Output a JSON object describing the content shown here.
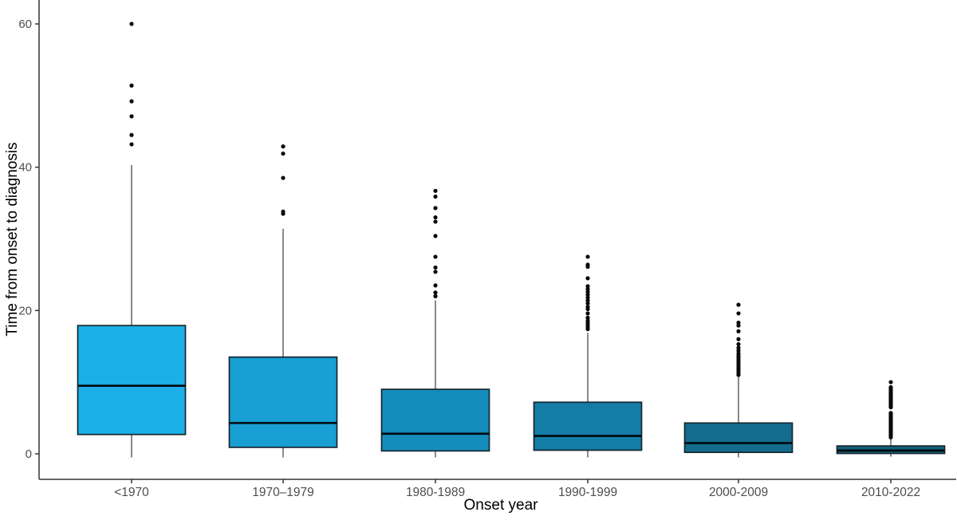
{
  "chart_data": {
    "type": "boxplot",
    "title": "",
    "xlabel": "Onset year",
    "ylabel": "Time from onset to diagnosis",
    "categories": [
      "<1970",
      "1970–1979",
      "1980-1989",
      "1990-1999",
      "2000-2009",
      "2010-2022"
    ],
    "y_ticks": [
      0,
      20,
      40,
      60
    ],
    "ylim": [
      -3.5,
      63.5
    ],
    "grid": false,
    "legend": false,
    "boxes": [
      {
        "category": "<1970",
        "whisker_low": -0.5,
        "q1": 2.7,
        "median": 9.5,
        "q3": 17.9,
        "whisker_high": 40.3,
        "outliers": [
          43.2,
          44.5,
          47.1,
          49.2,
          51.4,
          60
        ],
        "fill": "#1CAFE8"
      },
      {
        "category": "1970–1979",
        "whisker_low": -0.5,
        "q1": 0.9,
        "median": 4.3,
        "q3": 13.5,
        "whisker_high": 31.4,
        "outliers": [
          33.5,
          33.8,
          38.5,
          41.9,
          42.9
        ],
        "fill": "#189FD3"
      },
      {
        "category": "1980-1989",
        "whisker_low": -0.5,
        "q1": 0.4,
        "median": 2.8,
        "q3": 9.0,
        "whisker_high": 21.4,
        "outliers": [
          22.0,
          22.5,
          23.5,
          25.4,
          26.0,
          27.5,
          30.4,
          32.4,
          33.0,
          34.3,
          35.9,
          36.7
        ],
        "fill": "#158DBB"
      },
      {
        "category": "1990-1999",
        "whisker_low": -0.5,
        "q1": 0.5,
        "median": 2.5,
        "q3": 7.2,
        "whisker_high": 16.9,
        "outliers": [
          17.4,
          17.7,
          18.0,
          18.3,
          18.6,
          19.0,
          19.6,
          20.2,
          20.5,
          21.0,
          21.4,
          21.8,
          22.2,
          22.6,
          23.0,
          23.4,
          24.5,
          26.1,
          26.4,
          27.5
        ],
        "fill": "#137DA7"
      },
      {
        "category": "2000-2009",
        "whisker_low": -0.5,
        "q1": 0.2,
        "median": 1.5,
        "q3": 4.3,
        "whisker_high": 10.7,
        "outliers": [
          11.0,
          11.3,
          11.6,
          11.9,
          12.2,
          12.5,
          12.8,
          13.1,
          13.4,
          13.7,
          14.0,
          14.4,
          14.8,
          15.3,
          16.0,
          17.1,
          17.9,
          18.3,
          19.6,
          20.8
        ],
        "fill": "#136C8E"
      },
      {
        "category": "2010-2022",
        "whisker_low": -0.4,
        "q1": 0.05,
        "median": 0.45,
        "q3": 1.1,
        "whisker_high": 2.1,
        "outliers": [
          2.3,
          2.5,
          2.7,
          2.9,
          3.1,
          3.3,
          3.5,
          3.7,
          3.9,
          4.1,
          4.3,
          4.5,
          4.7,
          4.9,
          5.1,
          5.3,
          5.5,
          5.7,
          6.5,
          6.7,
          6.9,
          7.1,
          7.3,
          7.5,
          7.7,
          7.9,
          8.1,
          8.3,
          8.5,
          8.7,
          8.9,
          9.1,
          9.3,
          10.0
        ],
        "fill": "#125E78"
      }
    ],
    "colors": {
      "box_border": "#16262E",
      "median_line": "#02080C",
      "whisker": "#4A4A4A",
      "outlier": "#0A0A0A",
      "axis_line": "#333333",
      "tick_label": "#4D4D4D",
      "axis_title": "#000000",
      "background": "#FFFFFF"
    }
  }
}
